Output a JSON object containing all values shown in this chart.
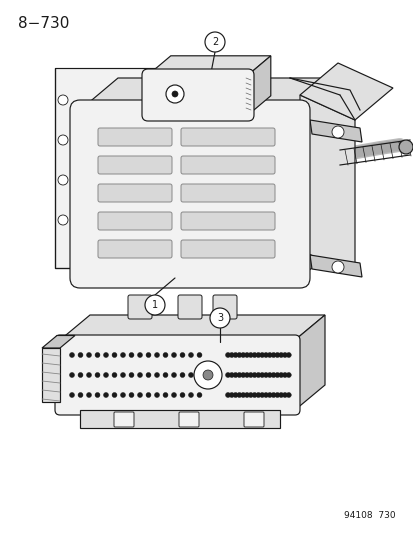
{
  "title": "8−730",
  "footer": "94108  730",
  "bg_color": "#ffffff",
  "text_color": "#1a1a1a",
  "lw": 0.85,
  "gray_fill": "#f2f2f2",
  "mid_gray": "#e0e0e0",
  "dark_gray": "#c8c8c8",
  "slot_fill": "#d8d8d8"
}
